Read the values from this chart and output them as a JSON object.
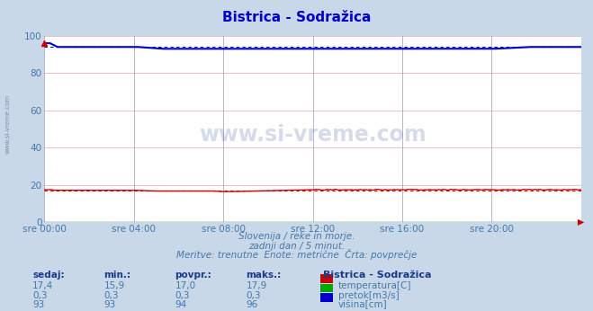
{
  "title": "Bistrica - Sodražica",
  "bg_color": "#c8d8e8",
  "plot_bg_color": "#ffffff",
  "grid_color_v": "#9999bb",
  "grid_color_h": "#ddaaaa",
  "ylim": [
    0,
    100
  ],
  "xlim": [
    0,
    288
  ],
  "xtick_labels": [
    "sre 00:00",
    "sre 04:00",
    "sre 08:00",
    "sre 12:00",
    "sre 16:00",
    "sre 20:00"
  ],
  "xtick_positions": [
    0,
    48,
    96,
    144,
    192,
    240
  ],
  "ytick_positions": [
    0,
    20,
    40,
    60,
    80,
    100
  ],
  "ytick_labels": [
    "0",
    "20",
    "40",
    "60",
    "80",
    "100"
  ],
  "subtitle1": "Slovenija / reke in morje.",
  "subtitle2": "zadnji dan / 5 minut.",
  "subtitle3": "Meritve: trenutne  Enote: metrične  Črta: povprečje",
  "legend_title": "Bistrica - Sodražica",
  "legend_items": [
    "temperatura[C]",
    "pretok[m3/s]",
    "višina[cm]"
  ],
  "legend_colors": [
    "#cc0000",
    "#00aa00",
    "#0000cc"
  ],
  "table_headers": [
    "sedaj:",
    "min.:",
    "povpr.:",
    "maks.:"
  ],
  "table_data": [
    [
      "17,4",
      "15,9",
      "17,0",
      "17,9"
    ],
    [
      "0,3",
      "0,3",
      "0,3",
      "0,3"
    ],
    [
      "93",
      "93",
      "94",
      "96"
    ]
  ],
  "temp_avg": 17.0,
  "height_avg": 94,
  "height_max": 96,
  "watermark": "www.si-vreme.com",
  "watermark_color": "#1a3a8a",
  "text_color": "#4477aa",
  "label_color": "#1a3a8a",
  "title_color": "#0000cc",
  "tick_color": "#4477aa",
  "left_label": "www.si-vreme.com"
}
